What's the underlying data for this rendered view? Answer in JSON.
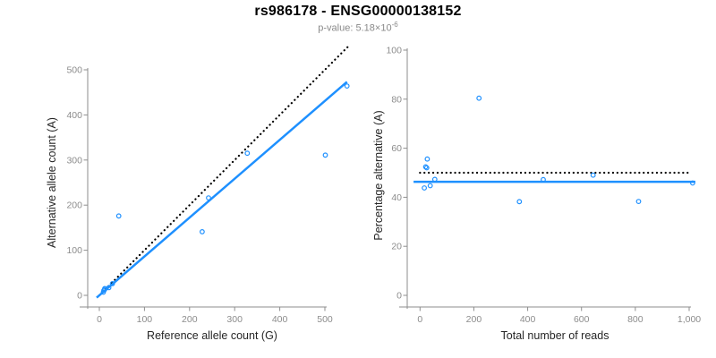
{
  "header": {
    "title": "rs986178 - ENSG00000138152",
    "pvalue_label": "p-value: ",
    "pvalue_mantissa": "5.18",
    "pvalue_base": "×10",
    "pvalue_exponent": "-6"
  },
  "colors": {
    "accent_blue": "#1E90FF",
    "axis_gray": "#8E8E8E",
    "tick_label_gray": "#8C8C8C",
    "axis_title_dark": "#262626",
    "dotted_black": "#000000",
    "background": "#FFFFFF"
  },
  "chart_data": [
    {
      "type": "scatter",
      "name": "allele-counts-panel",
      "xlabel": "Reference allele count (G)",
      "ylabel": "Alternative allele count (A)",
      "xlim": [
        0,
        500
      ],
      "ylim": [
        0,
        500
      ],
      "grid": false,
      "legend": null,
      "xticks": [
        0,
        100,
        200,
        300,
        400,
        500
      ],
      "xtick_labels": [
        "0",
        "100",
        "200",
        "300",
        "400",
        "500"
      ],
      "yticks": [
        0,
        100,
        200,
        300,
        400,
        500
      ],
      "ytick_labels": [
        "0",
        "100",
        "200",
        "300",
        "400",
        "500"
      ],
      "points": [
        [
          9,
          7
        ],
        [
          10,
          11
        ],
        [
          12,
          13
        ],
        [
          12,
          15
        ],
        [
          21,
          17
        ],
        [
          29,
          26
        ],
        [
          43,
          176
        ],
        [
          228,
          141
        ],
        [
          242,
          216
        ],
        [
          328,
          315
        ],
        [
          501,
          311
        ],
        [
          549,
          464
        ]
      ],
      "lines": [
        {
          "name": "identity-line",
          "type": "abline",
          "slope": 1,
          "intercept": 0,
          "dash": "dotted",
          "color": "#000000",
          "x_range": [
            0,
            556
          ],
          "width": 2.2
        },
        {
          "name": "fit-line",
          "type": "abline",
          "slope": 0.862,
          "intercept": 0,
          "dash": "solid",
          "color": "#1E90FF",
          "x_range": [
            -6,
            549
          ],
          "width": 2.5
        }
      ]
    },
    {
      "type": "scatter",
      "name": "percentage-panel",
      "xlabel": "Total number of reads",
      "ylabel": "Percentage alternative (A)",
      "xlim": [
        0,
        1000
      ],
      "ylim": [
        0,
        100
      ],
      "grid": false,
      "legend": null,
      "xticks": [
        0,
        200,
        400,
        600,
        800,
        1000
      ],
      "xtick_labels": [
        "0",
        "200",
        "400",
        "600",
        "800",
        "1,000"
      ],
      "yticks": [
        0,
        20,
        40,
        60,
        80,
        100
      ],
      "ytick_labels": [
        "0",
        "20",
        "40",
        "60",
        "80",
        "100"
      ],
      "points": [
        [
          16,
          43.8
        ],
        [
          21,
          52.4
        ],
        [
          25,
          52.0
        ],
        [
          27,
          55.6
        ],
        [
          38,
          44.7
        ],
        [
          55,
          47.3
        ],
        [
          219,
          80.4
        ],
        [
          369,
          38.2
        ],
        [
          458,
          47.2
        ],
        [
          643,
          49.0
        ],
        [
          812,
          38.3
        ],
        [
          1013,
          45.8
        ]
      ],
      "lines": [
        {
          "name": "expected-50pct-line",
          "type": "hline",
          "y": 50,
          "dash": "dotted",
          "color": "#000000",
          "x_range": [
            0,
            1000
          ],
          "width": 2.2
        },
        {
          "name": "fit-line",
          "type": "hline",
          "y": 46.3,
          "dash": "solid",
          "color": "#1E90FF",
          "x_range": [
            -24,
            1023
          ],
          "width": 2.5
        }
      ]
    }
  ]
}
